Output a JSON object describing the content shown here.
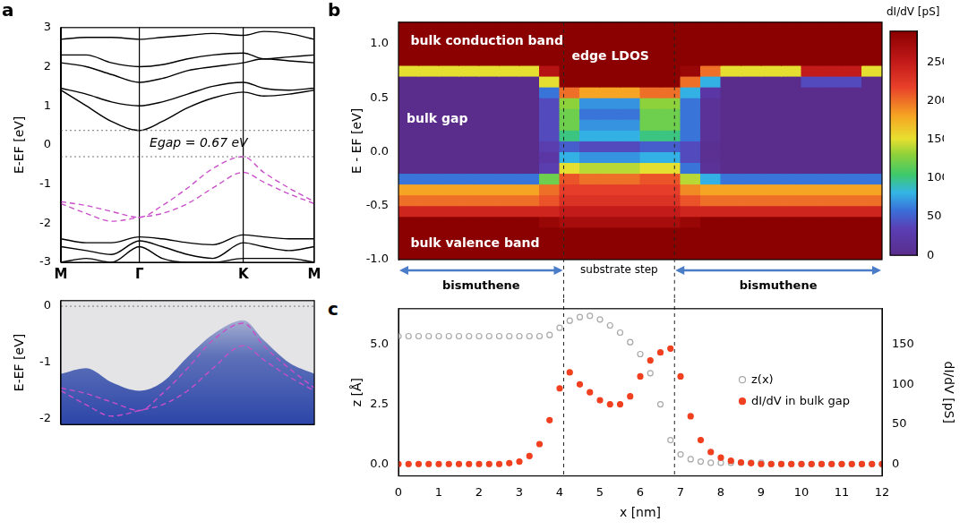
{
  "chart_data": [
    {
      "panel": "a",
      "type": "line",
      "y_label": "E-EF [eV]",
      "xlim": [
        0,
        1
      ],
      "xticks": [
        {
          "value": 0,
          "label": "M"
        },
        {
          "value": 0.31,
          "label": "Γ"
        },
        {
          "value": 0.72,
          "label": "K"
        },
        {
          "value": 1,
          "label": "M"
        }
      ],
      "ylim": [
        -3,
        3
      ],
      "yticks": [
        -3,
        -2,
        -1,
        0,
        1,
        2,
        3
      ],
      "grid": "x",
      "hlines": [
        0.37,
        -0.3
      ],
      "annotations": [
        {
          "text": "Egap = 0.67 eV",
          "x": 0.35,
          "y": 0.03
        }
      ],
      "x": [
        0,
        0.1,
        0.2,
        0.31,
        0.4,
        0.5,
        0.6,
        0.72,
        0.8,
        0.9,
        1
      ],
      "series": [
        {
          "color": "#000000",
          "line_style": "solid",
          "values": [
            1.4,
            1.0,
            0.6,
            0.37,
            0.6,
            0.95,
            1.2,
            1.35,
            1.25,
            1.3,
            1.4
          ]
        },
        {
          "color": "#000000",
          "line_style": "solid",
          "values": [
            1.45,
            1.3,
            1.1,
            1.0,
            1.1,
            1.3,
            1.5,
            1.6,
            1.45,
            1.4,
            1.45
          ]
        },
        {
          "color": "#000000",
          "line_style": "solid",
          "values": [
            2.1,
            2.0,
            1.8,
            1.6,
            1.7,
            1.9,
            2.0,
            2.1,
            2.2,
            2.15,
            2.1
          ]
        },
        {
          "color": "#000000",
          "line_style": "solid",
          "values": [
            2.3,
            2.3,
            2.1,
            2.0,
            2.05,
            2.2,
            2.3,
            2.35,
            2.2,
            2.25,
            2.3
          ]
        },
        {
          "color": "#000000",
          "line_style": "solid",
          "values": [
            2.7,
            2.75,
            2.75,
            2.7,
            2.75,
            2.8,
            2.85,
            2.8,
            2.9,
            2.85,
            2.7
          ]
        },
        {
          "color": "#000000",
          "line_style": "solid",
          "values": [
            -2.4,
            -2.5,
            -2.5,
            -2.35,
            -2.4,
            -2.5,
            -2.55,
            -2.3,
            -2.35,
            -2.4,
            -2.4
          ]
        },
        {
          "color": "#000000",
          "line_style": "solid",
          "values": [
            -2.6,
            -2.7,
            -2.8,
            -2.45,
            -2.6,
            -2.8,
            -2.9,
            -2.5,
            -2.6,
            -2.7,
            -2.6
          ]
        },
        {
          "color": "#000000",
          "line_style": "solid",
          "values": [
            -3.0,
            -2.9,
            -3.0,
            -2.6,
            -2.9,
            -3.0,
            -3.0,
            -2.9,
            -2.9,
            -2.9,
            -3.0
          ]
        },
        {
          "color": "#c94fc9",
          "line_style": "dashed",
          "values": [
            -1.45,
            -1.55,
            -1.7,
            -1.85,
            -1.55,
            -1.1,
            -0.6,
            -0.3,
            -0.7,
            -1.1,
            -1.45
          ]
        },
        {
          "color": "#c94fc9",
          "line_style": "dashed",
          "values": [
            -1.5,
            -1.75,
            -1.95,
            -1.85,
            -1.75,
            -1.5,
            -1.1,
            -0.7,
            -0.95,
            -1.25,
            -1.5
          ]
        }
      ]
    },
    {
      "type": "line",
      "y_label": "E-EF [eV]",
      "xlim": [
        0,
        1
      ],
      "xticks": [
        0,
        0.31,
        0.72,
        1
      ],
      "ylim": [
        -2.1,
        0.1
      ],
      "yticks": [
        -2,
        -1,
        0
      ],
      "grid": "x",
      "tick_labels": "y",
      "hlines": [
        0
      ],
      "x": [
        0,
        0.1,
        0.2,
        0.31,
        0.4,
        0.5,
        0.6,
        0.72,
        0.8,
        0.9,
        1
      ],
      "series": [
        {
          "type": "area",
          "color": "#2c46a8",
          "values": [
            -1.2,
            -1.1,
            -1.35,
            -1.5,
            -1.35,
            -0.9,
            -0.5,
            -0.25,
            -0.6,
            -1.0,
            -1.2
          ]
        },
        {
          "color": "#c94fc9",
          "line_style": "dashed",
          "values": [
            -1.45,
            -1.55,
            -1.7,
            -1.85,
            -1.55,
            -1.1,
            -0.6,
            -0.3,
            -0.7,
            -1.1,
            -1.45
          ]
        },
        {
          "color": "#c94fc9",
          "line_style": "dashed",
          "values": [
            -1.5,
            -1.75,
            -1.95,
            -1.85,
            -1.75,
            -1.5,
            -1.1,
            -0.7,
            -0.95,
            -1.25,
            -1.5
          ]
        }
      ]
    },
    {
      "panel": "b",
      "type": "heatmap",
      "y_label": "E - EF [eV]",
      "xlim": [
        0,
        12
      ],
      "ylim": [
        -1,
        1.2
      ],
      "yticks": [
        {
          "value": -1,
          "label": "-1.0"
        },
        {
          "value": -0.5,
          "label": "-0.5"
        },
        {
          "value": 0,
          "label": "0.0"
        },
        {
          "value": 0.5,
          "label": "0.5"
        },
        {
          "value": 1,
          "label": "1.0"
        }
      ],
      "tick_labels": "y",
      "x_bins": [
        0,
        0.5,
        1,
        1.5,
        2,
        2.5,
        3,
        3.5,
        4,
        4.5,
        5,
        5.5,
        6,
        6.5,
        7,
        7.5,
        8,
        8.5,
        9,
        9.5,
        10,
        10.5,
        11,
        11.5,
        12
      ],
      "y_bins": [
        -1,
        -0.9,
        -0.8,
        -0.7,
        -0.6,
        -0.5,
        -0.4,
        -0.3,
        -0.2,
        -0.1,
        0,
        0.1,
        0.2,
        0.3,
        0.4,
        0.5,
        0.6,
        0.7,
        0.8,
        0.9,
        1,
        1.1,
        1.2
      ],
      "cells": [
        [
          290,
          290,
          290,
          290,
          290,
          290,
          290,
          290,
          290,
          290,
          290,
          290,
          290,
          290,
          290,
          290,
          290,
          290,
          290,
          290,
          290,
          290,
          290,
          290
        ],
        [
          290,
          290,
          290,
          290,
          290,
          290,
          290,
          290,
          290,
          290,
          290,
          290,
          290,
          290,
          290,
          290,
          290,
          290,
          290,
          290,
          290,
          290,
          290,
          290
        ],
        [
          290,
          290,
          290,
          290,
          290,
          290,
          290,
          290,
          290,
          290,
          290,
          290,
          290,
          290,
          290,
          290,
          290,
          290,
          290,
          290,
          290,
          290,
          290,
          290
        ],
        [
          290,
          290,
          290,
          290,
          290,
          290,
          290,
          280,
          270,
          270,
          270,
          270,
          270,
          270,
          280,
          290,
          290,
          290,
          290,
          290,
          290,
          290,
          290,
          290
        ],
        [
          240,
          240,
          240,
          240,
          240,
          240,
          240,
          240,
          250,
          250,
          250,
          250,
          250,
          250,
          240,
          240,
          240,
          240,
          240,
          240,
          240,
          240,
          240,
          240
        ],
        [
          200,
          200,
          200,
          200,
          200,
          200,
          200,
          210,
          230,
          230,
          230,
          230,
          230,
          230,
          210,
          200,
          200,
          200,
          200,
          200,
          200,
          200,
          200,
          200
        ],
        [
          180,
          180,
          180,
          180,
          180,
          180,
          180,
          200,
          220,
          220,
          220,
          220,
          220,
          220,
          190,
          180,
          180,
          180,
          180,
          180,
          180,
          180,
          180,
          180
        ],
        [
          60,
          60,
          60,
          60,
          60,
          60,
          60,
          120,
          210,
          200,
          200,
          200,
          210,
          210,
          140,
          80,
          60,
          60,
          60,
          60,
          60,
          60,
          60,
          60
        ],
        [
          0,
          0,
          0,
          0,
          0,
          0,
          0,
          30,
          150,
          140,
          140,
          140,
          150,
          150,
          60,
          10,
          0,
          0,
          0,
          0,
          0,
          0,
          0,
          0
        ],
        [
          0,
          0,
          0,
          0,
          0,
          0,
          0,
          20,
          80,
          70,
          70,
          70,
          80,
          80,
          40,
          5,
          0,
          0,
          0,
          0,
          0,
          0,
          0,
          0
        ],
        [
          0,
          0,
          0,
          0,
          0,
          0,
          0,
          30,
          50,
          40,
          40,
          40,
          50,
          50,
          40,
          5,
          0,
          0,
          0,
          0,
          0,
          0,
          0,
          0
        ],
        [
          0,
          0,
          0,
          0,
          0,
          0,
          0,
          40,
          100,
          80,
          80,
          80,
          100,
          100,
          60,
          10,
          0,
          0,
          0,
          0,
          0,
          0,
          0,
          0
        ],
        [
          0,
          0,
          0,
          0,
          0,
          0,
          0,
          40,
          120,
          70,
          70,
          70,
          120,
          120,
          60,
          10,
          0,
          0,
          0,
          0,
          0,
          0,
          0,
          0
        ],
        [
          0,
          0,
          0,
          0,
          0,
          0,
          0,
          40,
          120,
          60,
          60,
          60,
          120,
          120,
          60,
          10,
          0,
          0,
          0,
          0,
          0,
          0,
          0,
          0
        ],
        [
          0,
          0,
          0,
          0,
          0,
          0,
          0,
          40,
          130,
          70,
          70,
          70,
          130,
          130,
          60,
          10,
          0,
          0,
          0,
          0,
          0,
          0,
          0,
          0
        ],
        [
          0,
          0,
          0,
          0,
          0,
          0,
          0,
          60,
          200,
          180,
          180,
          180,
          200,
          200,
          80,
          20,
          0,
          0,
          0,
          0,
          0,
          0,
          0,
          0
        ],
        [
          0,
          0,
          0,
          0,
          0,
          0,
          0,
          150,
          290,
          290,
          290,
          290,
          290,
          290,
          200,
          80,
          0,
          0,
          0,
          0,
          40,
          40,
          40,
          0
        ],
        [
          150,
          150,
          150,
          150,
          150,
          150,
          150,
          260,
          290,
          290,
          290,
          290,
          290,
          290,
          280,
          200,
          150,
          150,
          150,
          150,
          250,
          250,
          250,
          150
        ],
        [
          290,
          290,
          290,
          290,
          290,
          290,
          290,
          290,
          290,
          290,
          290,
          290,
          290,
          290,
          290,
          290,
          290,
          290,
          290,
          290,
          290,
          290,
          290,
          290
        ],
        [
          290,
          290,
          290,
          290,
          290,
          290,
          290,
          290,
          290,
          290,
          290,
          290,
          290,
          290,
          290,
          290,
          290,
          290,
          290,
          290,
          290,
          290,
          290,
          290
        ],
        [
          290,
          290,
          290,
          290,
          290,
          290,
          290,
          290,
          290,
          290,
          290,
          290,
          290,
          290,
          290,
          290,
          290,
          290,
          290,
          290,
          290,
          290,
          290,
          290
        ],
        [
          290,
          290,
          290,
          290,
          290,
          290,
          290,
          290,
          290,
          290,
          290,
          290,
          290,
          290,
          290,
          290,
          290,
          290,
          290,
          290,
          290,
          290,
          290,
          290
        ]
      ],
      "colorbar": {
        "label": "dI/dV [pS]",
        "range": [
          0,
          290
        ],
        "ticks": [
          0,
          50,
          100,
          150,
          200,
          250
        ]
      },
      "annotations": [
        {
          "text": "bulk conduction band",
          "x": 0.3,
          "y": 1.02
        },
        {
          "text": "edge LDOS",
          "x": 4.3,
          "y": 0.88
        },
        {
          "text": "bulk gap",
          "x": 0.2,
          "y": 0.3
        },
        {
          "text": "bulk valence band",
          "x": 0.3,
          "y": -0.85
        }
      ],
      "vlines": [
        4.1,
        6.85
      ],
      "arrows": [
        {
          "label": "bismuthene",
          "from": 0,
          "to": 4.1
        },
        {
          "label": "bismuthene",
          "from": 6.85,
          "to": 12
        }
      ],
      "step_label": {
        "text": "substrate step",
        "from": 4.1,
        "to": 6.85
      }
    },
    {
      "panel": "c",
      "type": "scatter",
      "x_label": "x [nm]",
      "y_label": "z [Å]",
      "y2_label": "dI/dV [pS]",
      "xlim": [
        0,
        12
      ],
      "xticks": [
        0,
        1,
        2,
        3,
        4,
        5,
        6,
        7,
        8,
        9,
        10,
        11,
        12
      ],
      "ylim": [
        -0.5,
        6.5
      ],
      "yticks": [
        {
          "value": 0,
          "label": "0.0"
        },
        {
          "value": 2.5,
          "label": "2.5"
        },
        {
          "value": 5,
          "label": "5.0"
        }
      ],
      "y2lim": [
        -15,
        195
      ],
      "y2ticks": [
        0,
        50,
        100,
        150
      ],
      "legend": "right",
      "vlines": [
        4.1,
        6.85
      ],
      "x": [
        0,
        0.25,
        0.5,
        0.75,
        1,
        1.25,
        1.5,
        1.75,
        2,
        2.25,
        2.5,
        2.75,
        3,
        3.25,
        3.5,
        3.75,
        4,
        4.25,
        4.5,
        4.75,
        5,
        5.25,
        5.5,
        5.75,
        6,
        6.25,
        6.5,
        6.75,
        7,
        7.25,
        7.5,
        7.75,
        8,
        8.25,
        8.5,
        8.75,
        9,
        9.25,
        9.5,
        9.75,
        10,
        10.25,
        10.5,
        10.75,
        11,
        11.25,
        11.5,
        11.75,
        12
      ],
      "series": [
        {
          "name": "z(x)",
          "color": "#a8a8a8",
          "marker": "open_circle",
          "values": [
            5.35,
            5.35,
            5.35,
            5.35,
            5.35,
            5.35,
            5.35,
            5.35,
            5.35,
            5.35,
            5.35,
            5.35,
            5.35,
            5.35,
            5.35,
            5.4,
            5.7,
            6.0,
            6.15,
            6.2,
            6.05,
            5.8,
            5.5,
            5.1,
            4.6,
            3.8,
            2.5,
            1.0,
            0.4,
            0.2,
            0.1,
            0.05,
            0.05,
            0.05,
            0.05,
            0.05,
            0.05,
            0,
            0,
            0,
            0,
            0,
            0,
            0,
            0,
            0,
            0,
            0,
            0
          ]
        },
        {
          "name": "dI/dV in bulk gap",
          "color": "#f04020",
          "marker": "circle",
          "axis": "y2",
          "values": [
            0,
            0,
            0,
            0,
            0,
            0,
            0,
            0,
            0,
            0,
            0,
            1,
            3,
            10,
            25,
            55,
            95,
            115,
            100,
            90,
            80,
            75,
            75,
            85,
            110,
            130,
            140,
            145,
            110,
            60,
            30,
            15,
            8,
            4,
            2,
            1,
            0,
            0,
            0,
            0,
            0,
            0,
            0,
            0,
            0,
            0,
            0,
            0,
            0
          ]
        }
      ]
    }
  ]
}
